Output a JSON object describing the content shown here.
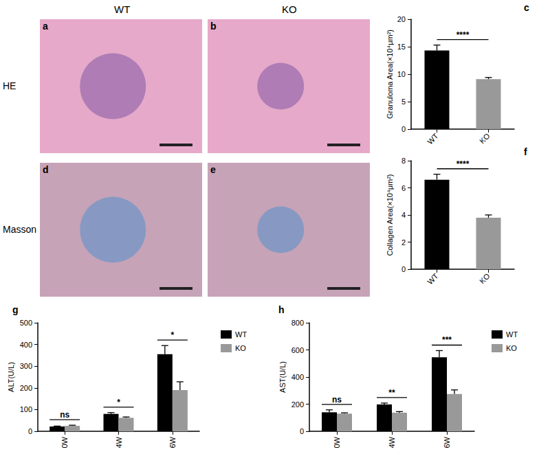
{
  "figure": {
    "columns": [
      "WT",
      "KO"
    ],
    "rows": [
      "HE",
      "Masson"
    ],
    "panels": [
      {
        "label": "a",
        "row": "HE",
        "column": "WT"
      },
      {
        "label": "b",
        "row": "HE",
        "column": "KO"
      },
      {
        "label": "d",
        "row": "Masson",
        "column": "WT"
      },
      {
        "label": "e",
        "row": "Masson",
        "column": "KO"
      }
    ]
  },
  "chart_data": [
    {
      "type": "bar",
      "title": "c",
      "y_label": "Granuloma Area(×10⁴μm²)",
      "categories": [
        "WT",
        "KO"
      ],
      "values": [
        14.3,
        9.1
      ],
      "errors": [
        1.0,
        0.3
      ],
      "colors": [
        "#000000",
        "#999999"
      ],
      "ylim": [
        0,
        20
      ],
      "yticks": [
        0,
        5,
        10,
        15,
        20
      ],
      "grid": false,
      "annotations": [
        {
          "from": "WT",
          "to": "KO",
          "text": "****"
        }
      ]
    },
    {
      "type": "bar",
      "title": "f",
      "y_label": "Collagen Area(×10⁴μm²)",
      "categories": [
        "WT",
        "KO"
      ],
      "values": [
        6.6,
        3.8
      ],
      "errors": [
        0.4,
        0.2
      ],
      "colors": [
        "#000000",
        "#999999"
      ],
      "ylim": [
        0,
        8
      ],
      "yticks": [
        0,
        2,
        4,
        6,
        8
      ],
      "grid": false,
      "annotations": [
        {
          "from": "WT",
          "to": "KO",
          "text": "****"
        }
      ]
    },
    {
      "type": "bar",
      "title": "g",
      "y_label": "ALT(U/L)",
      "categories": [
        "0W",
        "4W",
        "6W"
      ],
      "series": [
        {
          "name": "WT",
          "color": "#000000",
          "values": [
            22,
            80,
            355
          ],
          "errors": [
            2,
            6,
            40
          ]
        },
        {
          "name": "KO",
          "color": "#999999",
          "values": [
            25,
            62,
            190
          ],
          "errors": [
            3,
            4,
            38
          ]
        }
      ],
      "ylim": [
        0,
        500
      ],
      "yticks": [
        0,
        100,
        200,
        300,
        400,
        500
      ],
      "grid": false,
      "legend": "right",
      "annotations": [
        {
          "from": "0W",
          "to": "0W",
          "text": "ns"
        },
        {
          "from": "4W",
          "to": "4W",
          "text": "*"
        },
        {
          "from": "6W",
          "to": "6W",
          "text": "*"
        }
      ]
    },
    {
      "type": "bar",
      "title": "h",
      "y_label": "AST(U/L)",
      "categories": [
        "0W",
        "4W",
        "6W"
      ],
      "series": [
        {
          "name": "WT",
          "color": "#000000",
          "values": [
            140,
            198,
            545
          ],
          "errors": [
            18,
            10,
            50
          ]
        },
        {
          "name": "KO",
          "color": "#999999",
          "values": [
            130,
            137,
            275
          ],
          "errors": [
            6,
            8,
            30
          ]
        }
      ],
      "ylim": [
        0,
        800
      ],
      "yticks": [
        0,
        200,
        400,
        600,
        800
      ],
      "grid": false,
      "legend": "right",
      "annotations": [
        {
          "from": "0W",
          "to": "0W",
          "text": "ns"
        },
        {
          "from": "4W",
          "to": "4W",
          "text": "**"
        },
        {
          "from": "6W",
          "to": "6W",
          "text": "***"
        }
      ]
    }
  ]
}
